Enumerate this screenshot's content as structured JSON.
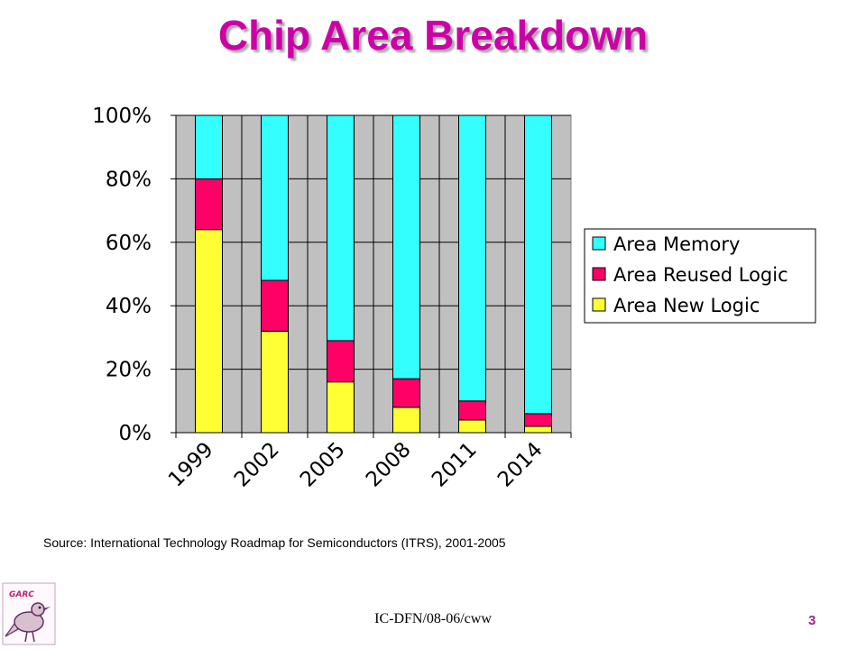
{
  "title": "Chip Area Breakdown",
  "source": "Source: International Technology Roadmap for Semiconductors (ITRS), 2001-2005",
  "footer": "IC-DFN/08-06/cww",
  "slide_number": "3",
  "logo_text": "GARC",
  "colors": {
    "title": "#cc00a8",
    "memory": "#33ffff",
    "reused": "#ff0066",
    "new": "#ffff33",
    "plot_bg": "#c0c0c0"
  },
  "chart_data": {
    "type": "bar",
    "stacked": true,
    "percent_axis": true,
    "categories": [
      "1999",
      "2002",
      "2005",
      "2008",
      "2011",
      "2014"
    ],
    "series": [
      {
        "name": "Area New Logic",
        "color": "#ffff33",
        "values": [
          64,
          32,
          16,
          8,
          4,
          2
        ]
      },
      {
        "name": "Area Reused Logic",
        "color": "#ff0066",
        "values": [
          16,
          16,
          13,
          9,
          6,
          4
        ]
      },
      {
        "name": "Area Memory",
        "color": "#33ffff",
        "values": [
          20,
          52,
          71,
          83,
          90,
          94
        ]
      }
    ],
    "legend_order": [
      "Area Memory",
      "Area Reused Logic",
      "Area New Logic"
    ],
    "yticks": [
      "0%",
      "20%",
      "40%",
      "60%",
      "80%",
      "100%"
    ],
    "ylim": [
      0,
      100
    ],
    "grid": true,
    "legend_position": "right"
  }
}
